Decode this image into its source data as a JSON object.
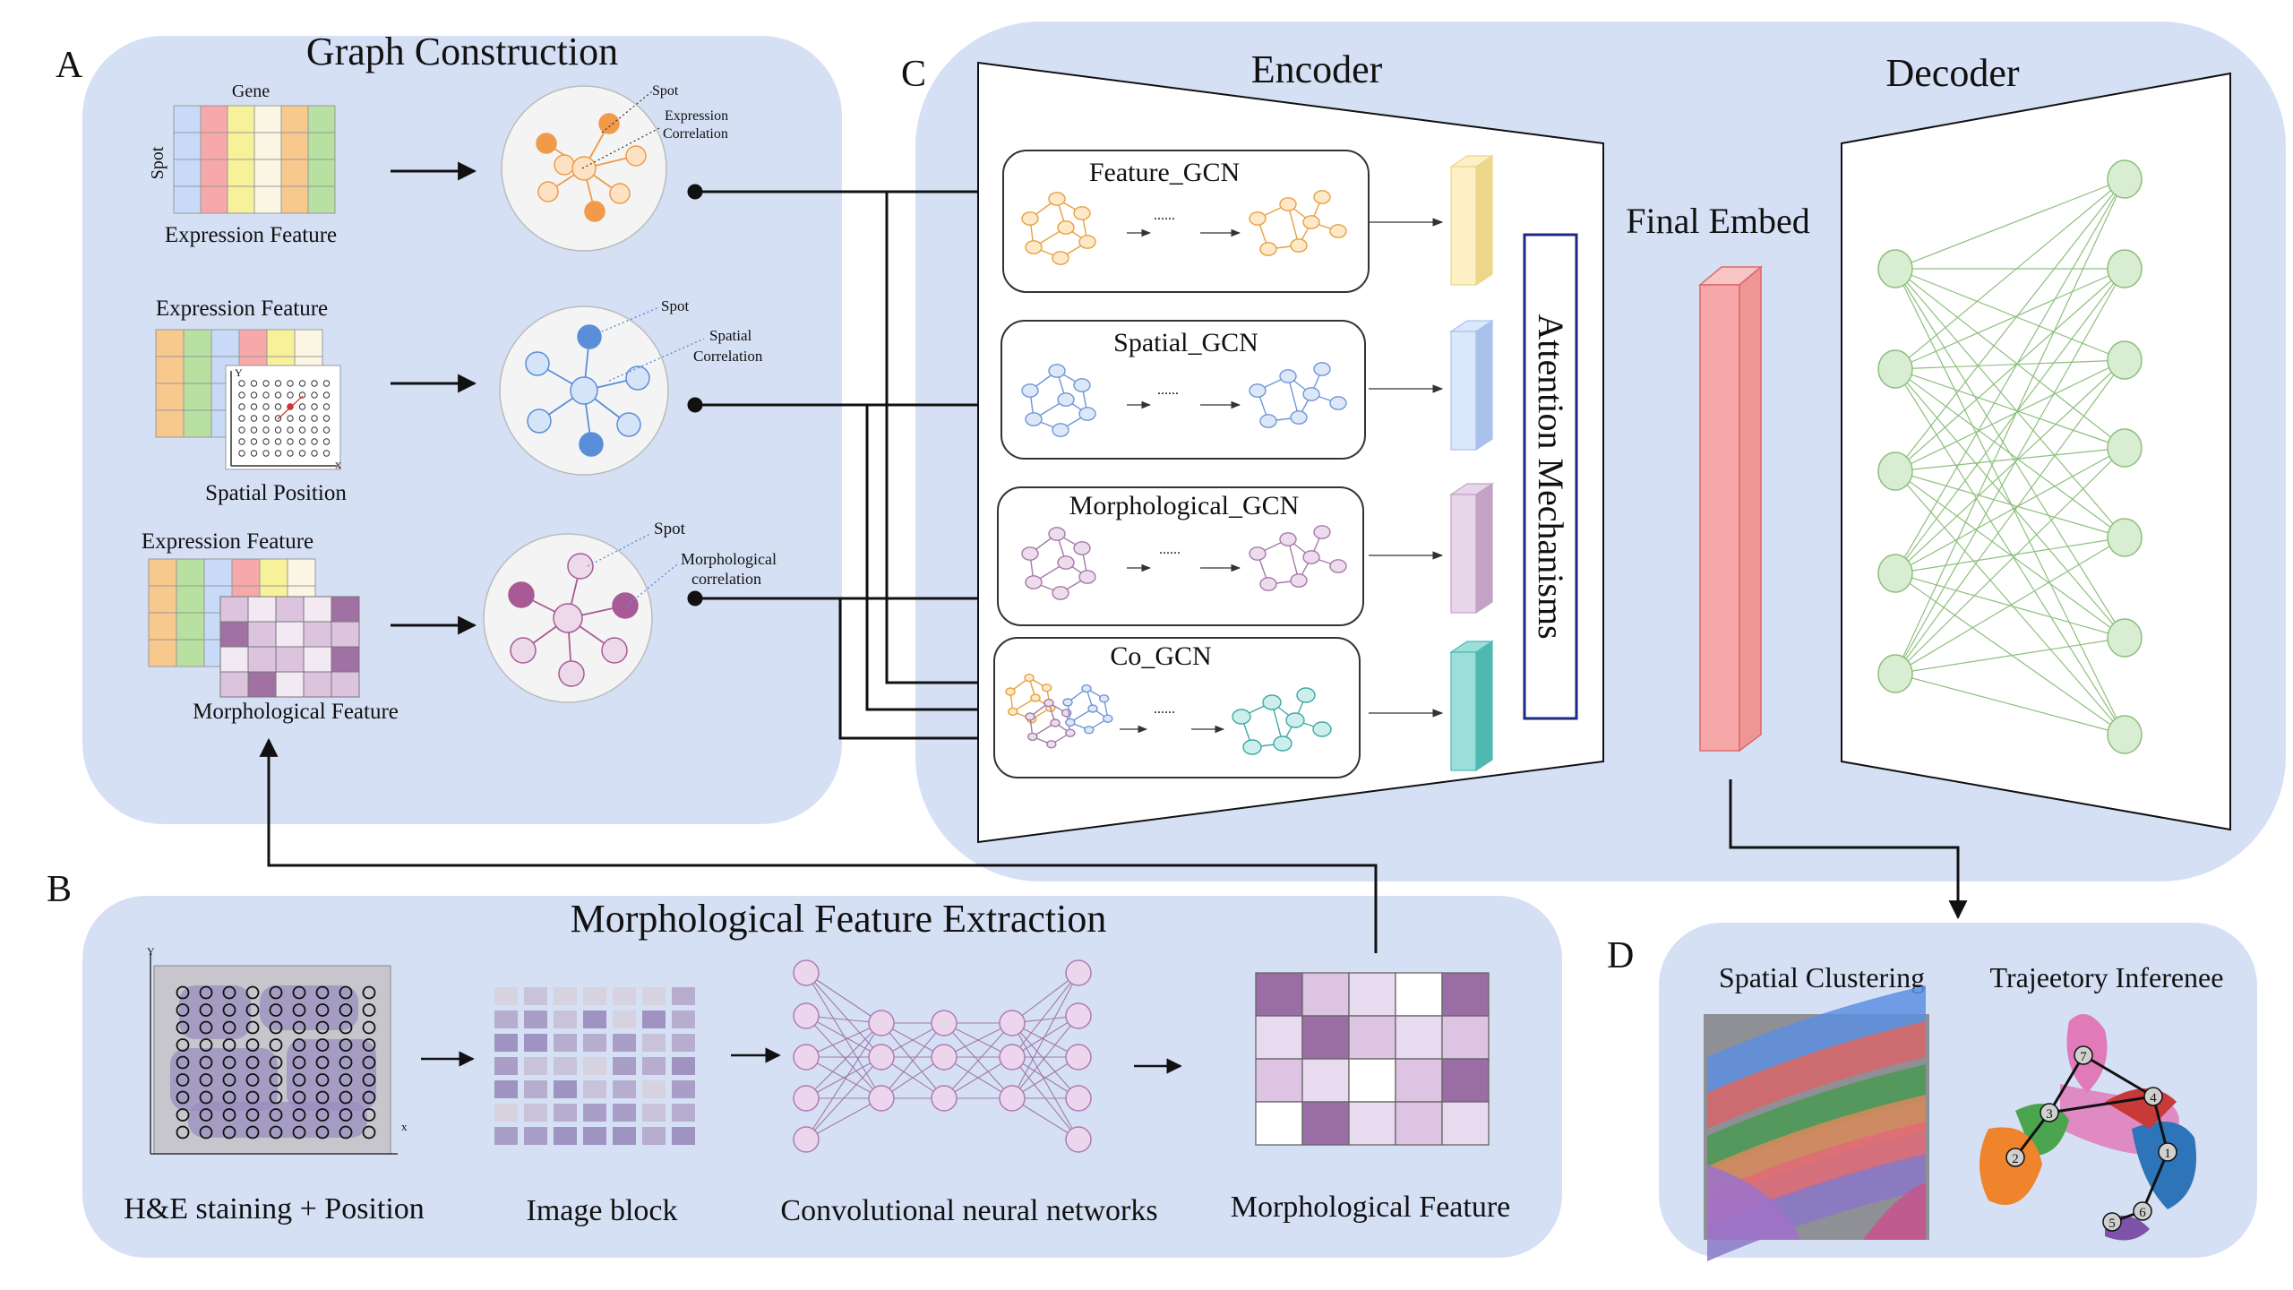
{
  "panel_labels": {
    "a": "A",
    "b": "B",
    "c": "C",
    "d": "D"
  },
  "graph_construction": {
    "title": "Graph Construction",
    "gene_label": "Gene",
    "spot_label": "Spot",
    "expression_feature": "Expression Feature",
    "spatial_position": "Spatial Position",
    "morphological_feature": "Morphological Feature",
    "axis_x": "x",
    "axis_y": "Y",
    "graph1": {
      "spot": "Spot",
      "corr_line1": "Expression",
      "corr_line2": "Correlation"
    },
    "graph2": {
      "spot": "Spot",
      "corr_line1": "Spatial",
      "corr_line2": "Correlation"
    },
    "graph3": {
      "spot": "Spot",
      "corr_line1": "Morphological",
      "corr_line2": "correlation"
    }
  },
  "encoder": {
    "title": "Encoder",
    "gcn_boxes": [
      "Feature_GCN",
      "Spatial_GCN",
      "Morphological_GCN",
      "Co_GCN"
    ],
    "ellipsis": "......",
    "attention": "Attention Mechanisms"
  },
  "final_embed": "Final Embed",
  "decoder": {
    "title": "Decoder"
  },
  "morph_extraction": {
    "title": "Morphological Feature Extraction",
    "steps": [
      "H&E staining + Position",
      "Image block",
      "Convolutional neural networks",
      "Morphological Feature"
    ],
    "axis_x": "x",
    "axis_y": "Y"
  },
  "downstream": {
    "spatial_clustering": "Spatial Clustering",
    "trajectory": "Trajeetory Inferenee",
    "trajectory_nodes": [
      "1",
      "2",
      "3",
      "4",
      "5",
      "6",
      "7"
    ]
  },
  "colors": {
    "panel_bg": "#d6e0f5",
    "feature": "#f5b86a",
    "spatial": "#8fb0e6",
    "morph": "#b483b0",
    "co": "#6fc9c4",
    "embed": "#f6a8a8",
    "decoder_node": "#cfe6c6",
    "decoder_edge": "#8dbf7c"
  }
}
